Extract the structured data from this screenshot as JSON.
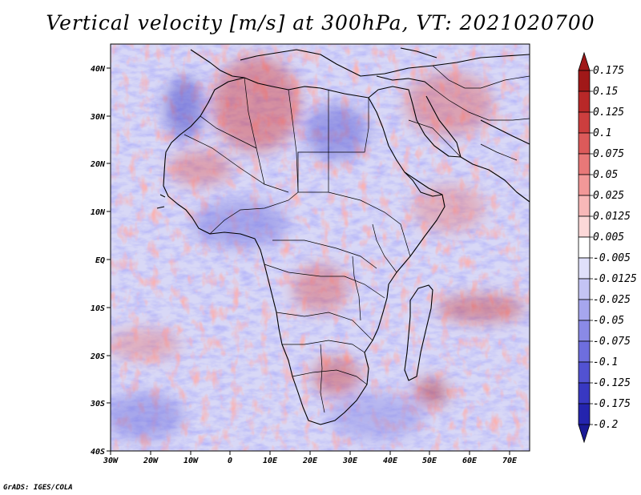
{
  "title": "Vertical velocity [m/s] at 300hPa, VT: 2021020700",
  "footer": "GrADS: IGES/COLA",
  "map": {
    "lon_range": [
      -30,
      75
    ],
    "lat_range": [
      -40,
      45
    ],
    "lon_ticks": [
      "30W",
      "20W",
      "10W",
      "0",
      "10E",
      "20E",
      "30E",
      "40E",
      "50E",
      "60E",
      "70E"
    ],
    "lat_ticks": [
      "40S",
      "30S",
      "20S",
      "10S",
      "EQ",
      "10N",
      "20N",
      "30N",
      "40N"
    ]
  },
  "colorbar": {
    "labels": [
      "0.175",
      "0.15",
      "0.125",
      "0.1",
      "0.075",
      "0.05",
      "0.025",
      "0.0125",
      "0.005",
      "-0.005",
      "-0.0125",
      "-0.025",
      "-0.05",
      "-0.075",
      "-0.1",
      "-0.125",
      "-0.175",
      "-0.2"
    ],
    "colors": [
      "#a01818",
      "#b82828",
      "#cc3e3e",
      "#dc5a5a",
      "#e87878",
      "#f29898",
      "#f8b8b8",
      "#fcd8d8",
      "#ffffff",
      "#e0e0fa",
      "#c4c4f4",
      "#a6a6ee",
      "#8a8ae6",
      "#6e6ede",
      "#5252d2",
      "#3838c2",
      "#2424ae"
    ],
    "min_color": "#1a1a96",
    "max_color": "#a01818"
  }
}
